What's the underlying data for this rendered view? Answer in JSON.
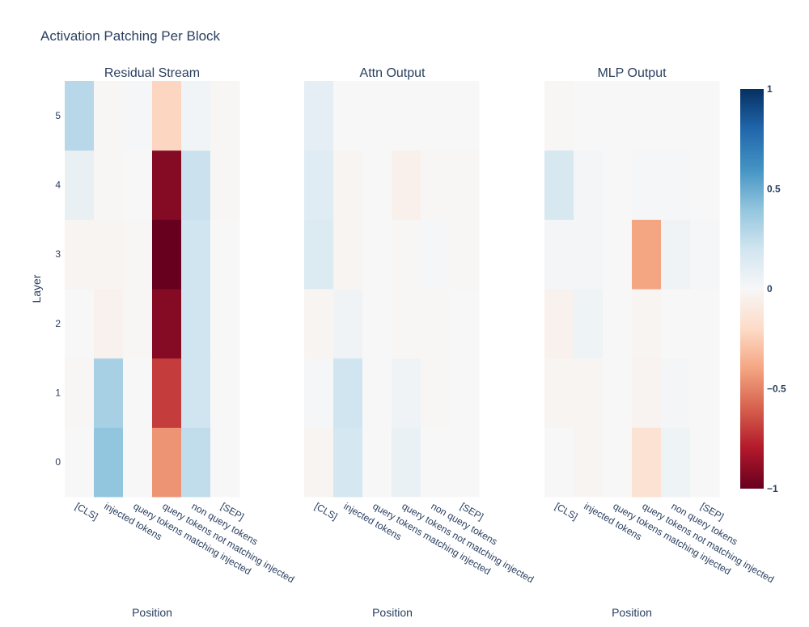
{
  "chart_data": {
    "type": "heatmap",
    "title": "Activation Patching Per Block",
    "colorscale": "RdBu",
    "zmin": -1,
    "zmax": 1,
    "colorbar_ticks": [
      "1",
      "0.5",
      "0",
      "−0.5",
      "−1"
    ],
    "colorbar_tick_values": [
      1,
      0.5,
      0,
      -0.5,
      -1
    ],
    "x_categories": [
      "[CLS]",
      "injected tokens",
      "query tokens matching injected",
      "query tokens not matching injected",
      "non query tokens",
      "[SEP]"
    ],
    "y_categories": [
      "0",
      "1",
      "2",
      "3",
      "4",
      "5"
    ],
    "ylabel": "Layer",
    "panels": [
      {
        "subtitle": "Residual Stream",
        "xlabel": "Position",
        "values": [
          [
            0.0,
            0.4,
            0.0,
            -0.45,
            0.25,
            0.0
          ],
          [
            -0.01,
            0.33,
            0.0,
            -0.7,
            0.2,
            0.0
          ],
          [
            0.0,
            -0.04,
            -0.01,
            -0.92,
            0.2,
            0.0
          ],
          [
            -0.02,
            -0.02,
            -0.01,
            -1.0,
            0.2,
            0.0
          ],
          [
            0.08,
            -0.01,
            0.0,
            -0.92,
            0.22,
            -0.01
          ],
          [
            0.28,
            -0.01,
            0.01,
            -0.22,
            0.03,
            -0.01
          ]
        ]
      },
      {
        "subtitle": "Attn Output",
        "xlabel": "Position",
        "values": [
          [
            -0.02,
            0.18,
            0.0,
            0.07,
            0.0,
            0.0
          ],
          [
            0.01,
            0.2,
            0.0,
            0.04,
            -0.01,
            0.0
          ],
          [
            -0.02,
            0.04,
            0.0,
            -0.01,
            -0.01,
            0.0
          ],
          [
            0.14,
            -0.02,
            0.0,
            -0.01,
            0.01,
            -0.01
          ],
          [
            0.12,
            -0.02,
            0.0,
            -0.05,
            -0.01,
            -0.01
          ],
          [
            0.1,
            0.0,
            0.0,
            0.0,
            0.0,
            0.0
          ]
        ]
      },
      {
        "subtitle": "MLP Output",
        "xlabel": "Position",
        "values": [
          [
            0.0,
            -0.02,
            0.0,
            -0.15,
            0.05,
            0.0
          ],
          [
            -0.02,
            -0.02,
            0.0,
            -0.03,
            0.02,
            0.0
          ],
          [
            -0.04,
            0.05,
            0.0,
            -0.02,
            0.0,
            0.0
          ],
          [
            0.02,
            0.02,
            0.0,
            -0.4,
            0.04,
            0.01
          ],
          [
            0.17,
            0.02,
            0.0,
            0.01,
            0.01,
            0.0
          ],
          [
            -0.01,
            0.0,
            0.0,
            0.0,
            0.0,
            0.0
          ]
        ]
      }
    ]
  }
}
